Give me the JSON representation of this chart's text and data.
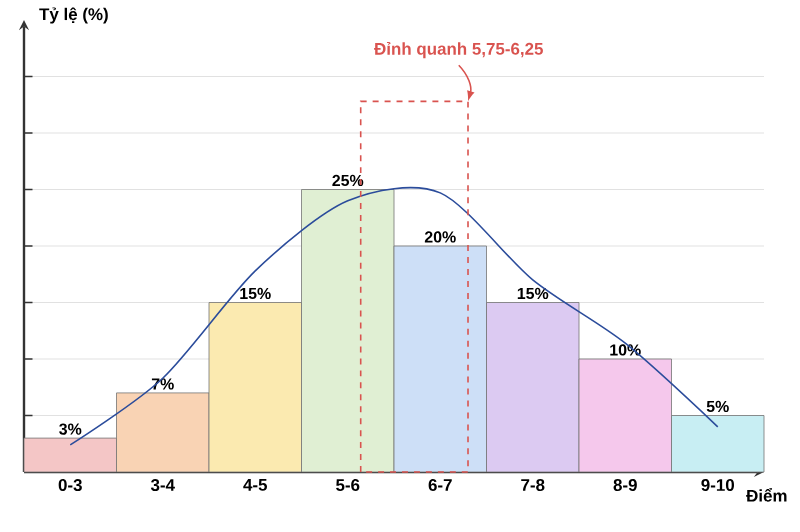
{
  "chart_data": {
    "type": "bar",
    "xlabel": "Điểm",
    "ylabel": "Tỷ lệ (%)",
    "categories": [
      "0-3",
      "3-4",
      "4-5",
      "5-6",
      "6-7",
      "7-8",
      "8-9",
      "9-10"
    ],
    "series": [
      {
        "type": "bar",
        "colors": [
          "#f4c6c6",
          "#f9d3b4",
          "#fbeab0",
          "#e0efd3",
          "#cddff7",
          "#dccaf2",
          "#f5c8ec",
          "#c8eef3"
        ],
        "values": [
          3,
          7,
          15,
          25,
          20,
          15,
          10,
          5
        ],
        "value_labels": [
          "3%",
          "7%",
          "15%",
          "25%",
          "20%",
          "15%",
          "10%",
          "5%"
        ]
      },
      {
        "type": "line",
        "color": "#2b4c9b",
        "values": [
          2.4,
          8.3,
          17.8,
          24,
          24.7,
          17,
          11.4,
          4
        ]
      }
    ],
    "annotations": [
      "Đỉnh quanh 5,75-6,25"
    ],
    "ylim": [
      0,
      40
    ],
    "yticks": [
      {
        "value": 5,
        "label": null
      },
      {
        "value": 10,
        "label": null
      },
      {
        "value": 15,
        "label": null
      },
      {
        "value": 20,
        "label": null
      },
      {
        "value": 25,
        "label": null
      },
      {
        "value": 30,
        "label": null
      },
      {
        "value": 35,
        "label": null
      }
    ],
    "tick_labels": "x",
    "grid": "y"
  }
}
